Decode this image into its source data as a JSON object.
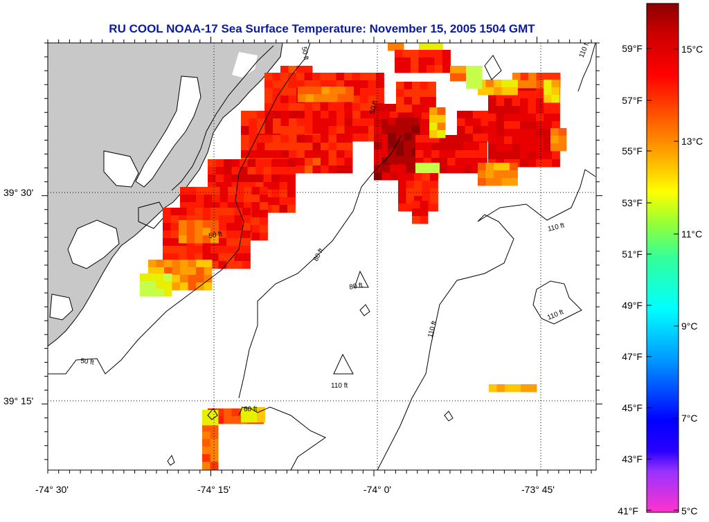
{
  "map": {
    "title": "RU COOL  NOAA-17  Sea Surface Temperature:  November 15, 2005 1504 GMT",
    "lon_labels": [
      "-74° 30'",
      "-74° 15'",
      "-74° 0'",
      "-73° 45'"
    ],
    "lat_labels": [
      "39° 30'",
      "39° 15'"
    ],
    "contour_labels": [
      "50 ft",
      "60 ft",
      "80 ft",
      "110 ft"
    ],
    "land_color": "#c8c8c8",
    "grid": "dotted"
  },
  "colorbar": {
    "f_labels": [
      "59°F",
      "57°F",
      "55°F",
      "53°F",
      "51°F",
      "49°F",
      "47°F",
      "45°F",
      "43°F",
      "41°F"
    ],
    "c_labels": [
      "15°C",
      "13°C",
      "11°C",
      "9°C",
      "7°C",
      "5°C"
    ],
    "colors": [
      "#ff33cc",
      "#9933ff",
      "#0000ff",
      "#0099ff",
      "#00ffff",
      "#33ff99",
      "#99ff33",
      "#ffff00",
      "#ffaa00",
      "#ff5500",
      "#ff0000",
      "#cc0000",
      "#990000"
    ]
  }
}
